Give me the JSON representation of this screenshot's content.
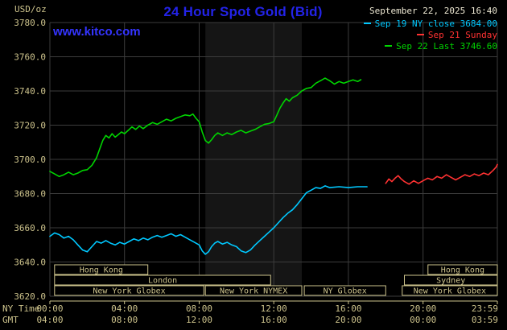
{
  "header": {
    "unit_label": "USD/oz",
    "title": "24 Hour Spot Gold (Bid)",
    "datetime": "September 22, 2025 16:40",
    "watermark": "www.kitco.com"
  },
  "colors": {
    "background": "#000000",
    "title_blue": "#2323e8",
    "link_blue": "#3434ff",
    "axis_tan": "#cdc38c",
    "grid_gray": "#3c3c3c",
    "band_gray": "#151515",
    "date_text": "#ece7d2",
    "cyan": "#00c8ff",
    "red": "#ff3232",
    "green": "#00d400"
  },
  "chart_data": {
    "type": "line",
    "title": "24 Hour Spot Gold (Bid)",
    "ylabel": "USD/oz",
    "ylim": [
      3620,
      3780
    ],
    "x_max_minute": 1439,
    "grid": true,
    "legend_position": "top-right",
    "y_ticks": [
      {
        "value": 3780,
        "label": "3780.0"
      },
      {
        "value": 3760,
        "label": "3760.0"
      },
      {
        "value": 3740,
        "label": "3740.0"
      },
      {
        "value": 3720,
        "label": "3720.0"
      },
      {
        "value": 3700,
        "label": "3700.0"
      },
      {
        "value": 3680,
        "label": "3680.0"
      },
      {
        "value": 3660,
        "label": "3660.0"
      },
      {
        "value": 3640,
        "label": "3640.0"
      },
      {
        "value": 3620,
        "label": "3620.0"
      }
    ],
    "x_axis": {
      "left_label_top": "NY Time",
      "left_label_bottom": "GMT",
      "ticks": [
        {
          "minute": 0,
          "ny": "00:00",
          "gmt": "04:00"
        },
        {
          "minute": 240,
          "ny": "04:00",
          "gmt": "08:00"
        },
        {
          "minute": 480,
          "ny": "08:00",
          "gmt": "12:00"
        },
        {
          "minute": 720,
          "ny": "12:00",
          "gmt": "16:00"
        },
        {
          "minute": 960,
          "ny": "16:00",
          "gmt": "20:00"
        },
        {
          "minute": 1200,
          "ny": "20:00",
          "gmt": "00:00"
        },
        {
          "minute": 1439,
          "ny": "23:59",
          "gmt": "03:59"
        }
      ]
    },
    "nymex_band": {
      "start_minute": 500,
      "end_minute": 810
    },
    "sessions": [
      {
        "row": 0,
        "label": "Hong Kong",
        "start_minute": 15,
        "end_minute": 315
      },
      {
        "row": 0,
        "label": "Hong Kong",
        "start_minute": 1216,
        "end_minute": 1439
      },
      {
        "row": 1,
        "label": "London",
        "start_minute": 15,
        "end_minute": 710
      },
      {
        "row": 1,
        "label": "Sydney",
        "start_minute": 1140,
        "end_minute": 1439
      },
      {
        "row": 2,
        "label": "New York Globex",
        "start_minute": 15,
        "end_minute": 495
      },
      {
        "row": 2,
        "label": "New York NYMEX",
        "start_minute": 500,
        "end_minute": 810
      },
      {
        "row": 2,
        "label": "NY Globex",
        "start_minute": 818,
        "end_minute": 1080
      },
      {
        "row": 2,
        "label": "New York Globex",
        "start_minute": 1133,
        "end_minute": 1439
      }
    ],
    "series": [
      {
        "name": "Sep 19 NY close",
        "legend_label": "Sep 19 NY close 3684.00",
        "close_value": 3684.0,
        "color": "#00c8ff",
        "points": [
          [
            0,
            3655
          ],
          [
            15,
            3657
          ],
          [
            30,
            3656
          ],
          [
            45,
            3654
          ],
          [
            60,
            3655
          ],
          [
            75,
            3653
          ],
          [
            90,
            3650
          ],
          [
            105,
            3647
          ],
          [
            120,
            3646
          ],
          [
            135,
            3649
          ],
          [
            150,
            3652
          ],
          [
            165,
            3651
          ],
          [
            180,
            3652.5
          ],
          [
            195,
            3651
          ],
          [
            210,
            3650
          ],
          [
            225,
            3651.5
          ],
          [
            240,
            3650.5
          ],
          [
            255,
            3652
          ],
          [
            270,
            3653.5
          ],
          [
            285,
            3652.5
          ],
          [
            300,
            3654
          ],
          [
            315,
            3653
          ],
          [
            330,
            3654.5
          ],
          [
            345,
            3655.5
          ],
          [
            360,
            3654.5
          ],
          [
            375,
            3655.5
          ],
          [
            390,
            3656.5
          ],
          [
            405,
            3655
          ],
          [
            420,
            3656
          ],
          [
            435,
            3654.5
          ],
          [
            450,
            3653
          ],
          [
            465,
            3651.5
          ],
          [
            480,
            3650
          ],
          [
            490,
            3646.5
          ],
          [
            500,
            3644.5
          ],
          [
            510,
            3646
          ],
          [
            520,
            3649
          ],
          [
            530,
            3651
          ],
          [
            540,
            3652
          ],
          [
            555,
            3650.5
          ],
          [
            570,
            3651.5
          ],
          [
            585,
            3650
          ],
          [
            600,
            3649
          ],
          [
            615,
            3646.5
          ],
          [
            630,
            3645.5
          ],
          [
            645,
            3647
          ],
          [
            660,
            3650
          ],
          [
            675,
            3652.5
          ],
          [
            690,
            3655
          ],
          [
            705,
            3657.5
          ],
          [
            720,
            3660
          ],
          [
            735,
            3663
          ],
          [
            750,
            3666
          ],
          [
            765,
            3668.5
          ],
          [
            780,
            3670.5
          ],
          [
            795,
            3673.5
          ],
          [
            810,
            3677
          ],
          [
            825,
            3680.5
          ],
          [
            840,
            3682
          ],
          [
            855,
            3683.5
          ],
          [
            870,
            3683
          ],
          [
            885,
            3684.5
          ],
          [
            900,
            3683.5
          ],
          [
            930,
            3684
          ],
          [
            960,
            3683.5
          ],
          [
            990,
            3684
          ],
          [
            1020,
            3684
          ]
        ]
      },
      {
        "name": "Sep 21 Sunday",
        "legend_label": "Sep 21 Sunday",
        "color": "#ff3232",
        "points": [
          [
            1080,
            3686
          ],
          [
            1090,
            3688.5
          ],
          [
            1100,
            3687
          ],
          [
            1110,
            3689
          ],
          [
            1120,
            3690.5
          ],
          [
            1130,
            3688.5
          ],
          [
            1140,
            3687
          ],
          [
            1155,
            3685.5
          ],
          [
            1170,
            3687.5
          ],
          [
            1185,
            3686
          ],
          [
            1200,
            3687.5
          ],
          [
            1215,
            3689
          ],
          [
            1230,
            3688
          ],
          [
            1245,
            3690
          ],
          [
            1260,
            3689
          ],
          [
            1275,
            3691
          ],
          [
            1290,
            3689.5
          ],
          [
            1305,
            3688
          ],
          [
            1320,
            3689.5
          ],
          [
            1335,
            3691
          ],
          [
            1350,
            3690
          ],
          [
            1365,
            3691.5
          ],
          [
            1380,
            3690.5
          ],
          [
            1395,
            3692
          ],
          [
            1410,
            3691
          ],
          [
            1425,
            3693.5
          ],
          [
            1435,
            3695.5
          ],
          [
            1439,
            3697
          ]
        ]
      },
      {
        "name": "Sep 22",
        "legend_label": "Sep 22 Last 3746.60",
        "last_value": 3746.6,
        "color": "#00d400",
        "points": [
          [
            0,
            3693
          ],
          [
            15,
            3691.5
          ],
          [
            30,
            3690
          ],
          [
            45,
            3691
          ],
          [
            60,
            3692.5
          ],
          [
            75,
            3691
          ],
          [
            90,
            3692
          ],
          [
            105,
            3693.5
          ],
          [
            120,
            3694
          ],
          [
            135,
            3696.5
          ],
          [
            150,
            3701
          ],
          [
            160,
            3706
          ],
          [
            170,
            3711
          ],
          [
            180,
            3714
          ],
          [
            190,
            3712.5
          ],
          [
            200,
            3715
          ],
          [
            210,
            3713
          ],
          [
            220,
            3714.5
          ],
          [
            230,
            3716
          ],
          [
            240,
            3715
          ],
          [
            252,
            3717
          ],
          [
            264,
            3719
          ],
          [
            276,
            3717.5
          ],
          [
            288,
            3719.5
          ],
          [
            300,
            3718
          ],
          [
            315,
            3720
          ],
          [
            330,
            3721.5
          ],
          [
            345,
            3720.5
          ],
          [
            360,
            3722
          ],
          [
            375,
            3723.5
          ],
          [
            390,
            3722.5
          ],
          [
            405,
            3724
          ],
          [
            420,
            3725
          ],
          [
            435,
            3726
          ],
          [
            450,
            3725.5
          ],
          [
            460,
            3726.5
          ],
          [
            470,
            3724
          ],
          [
            480,
            3722
          ],
          [
            490,
            3716
          ],
          [
            500,
            3711
          ],
          [
            510,
            3709.5
          ],
          [
            520,
            3711.5
          ],
          [
            530,
            3714
          ],
          [
            540,
            3715.5
          ],
          [
            555,
            3714
          ],
          [
            570,
            3715.5
          ],
          [
            585,
            3714.5
          ],
          [
            600,
            3716
          ],
          [
            615,
            3717
          ],
          [
            630,
            3715.5
          ],
          [
            645,
            3716.5
          ],
          [
            660,
            3717.5
          ],
          [
            675,
            3719
          ],
          [
            690,
            3720.5
          ],
          [
            705,
            3721
          ],
          [
            720,
            3722
          ],
          [
            730,
            3726
          ],
          [
            740,
            3730
          ],
          [
            750,
            3733
          ],
          [
            760,
            3735.5
          ],
          [
            770,
            3734
          ],
          [
            780,
            3736
          ],
          [
            795,
            3737.5
          ],
          [
            810,
            3740
          ],
          [
            825,
            3741.5
          ],
          [
            840,
            3742
          ],
          [
            855,
            3744.5
          ],
          [
            870,
            3746
          ],
          [
            885,
            3747.5
          ],
          [
            900,
            3746
          ],
          [
            915,
            3744
          ],
          [
            930,
            3745.5
          ],
          [
            945,
            3744.5
          ],
          [
            960,
            3745.5
          ],
          [
            975,
            3746.5
          ],
          [
            990,
            3745.5
          ],
          [
            1000,
            3746.6
          ]
        ]
      }
    ]
  }
}
